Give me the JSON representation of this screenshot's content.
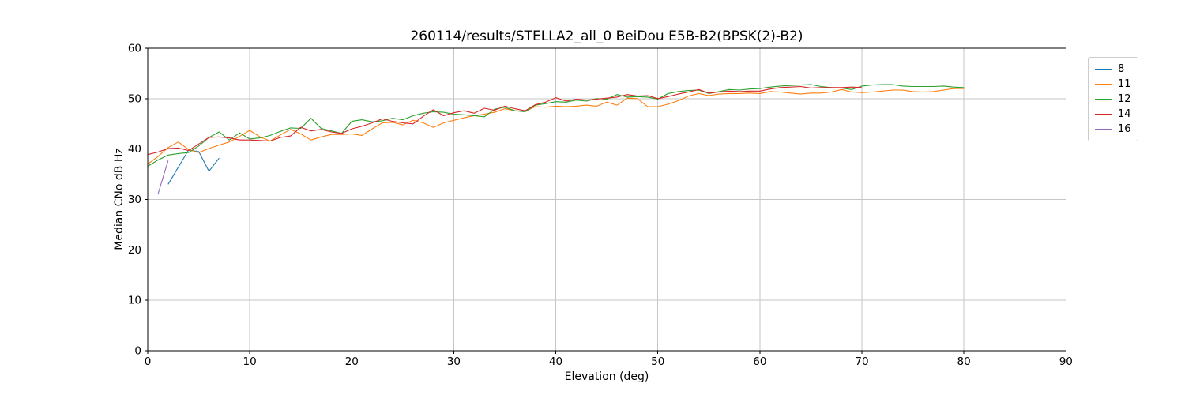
{
  "title": "260114/results/STELLA2_all_0 BeiDou E5B-B2(BPSK(2)-B2)",
  "chart_data": {
    "type": "line",
    "title": "260114/results/STELLA2_all_0 BeiDou E5B-B2(BPSK(2)-B2)",
    "xlabel": "Elevation (deg)",
    "ylabel": "Median CNo dB Hz",
    "xlim": [
      0,
      90
    ],
    "ylim": [
      0,
      60
    ],
    "xticks": [
      0,
      10,
      20,
      30,
      40,
      50,
      60,
      70,
      80,
      90
    ],
    "yticks": [
      0,
      10,
      20,
      30,
      40,
      50,
      60
    ],
    "grid": true,
    "grid_color": "#c6c6c6",
    "legend_position": "outside-right",
    "series": [
      {
        "name": "8",
        "color": "#1f77b4",
        "x": [
          2,
          4,
          5,
          6,
          7
        ],
        "values": [
          33.0,
          39.8,
          39.5,
          35.6,
          38.2
        ]
      },
      {
        "name": "11",
        "color": "#ff7f0e",
        "x": [
          0,
          1,
          2,
          3,
          4,
          5,
          6,
          7,
          8,
          9,
          10,
          11,
          12,
          13,
          14,
          15,
          16,
          17,
          18,
          19,
          20,
          21,
          22,
          23,
          24,
          25,
          26,
          27,
          28,
          29,
          30,
          31,
          32,
          33,
          34,
          35,
          36,
          37,
          38,
          39,
          40,
          41,
          42,
          43,
          44,
          45,
          46,
          47,
          48,
          49,
          50,
          51,
          52,
          53,
          54,
          55,
          56,
          57,
          58,
          59,
          60,
          61,
          62,
          63,
          64,
          65,
          66,
          67,
          68,
          69,
          70,
          71,
          72,
          73,
          74,
          75,
          76,
          77,
          78,
          79,
          80
        ],
        "values": [
          37.0,
          38.5,
          40.3,
          41.4,
          39.9,
          39.3,
          40.1,
          40.8,
          41.4,
          42.5,
          43.7,
          42.4,
          41.6,
          42.8,
          43.9,
          43.0,
          41.8,
          42.4,
          42.9,
          42.9,
          43.0,
          42.7,
          44.0,
          45.2,
          45.3,
          44.8,
          45.7,
          45.2,
          44.3,
          45.2,
          45.7,
          46.2,
          46.6,
          46.9,
          47.3,
          48.0,
          47.6,
          47.5,
          48.4,
          48.3,
          48.5,
          48.4,
          48.5,
          48.7,
          48.5,
          49.3,
          48.7,
          50.1,
          50.0,
          48.4,
          48.4,
          48.9,
          49.6,
          50.5,
          51.0,
          50.6,
          50.9,
          51.0,
          51.0,
          51.1,
          51.0,
          51.4,
          51.3,
          51.1,
          50.9,
          51.1,
          51.1,
          51.3,
          51.8,
          51.3,
          51.2,
          51.3,
          51.5,
          51.7,
          51.7,
          51.4,
          51.3,
          51.4,
          51.7,
          52.0,
          52.0
        ]
      },
      {
        "name": "12",
        "color": "#2ca02c",
        "x": [
          0,
          1,
          2,
          3,
          4,
          5,
          6,
          7,
          8,
          9,
          10,
          11,
          12,
          13,
          14,
          15,
          16,
          17,
          18,
          19,
          20,
          21,
          22,
          23,
          24,
          25,
          26,
          27,
          28,
          29,
          30,
          31,
          32,
          33,
          34,
          35,
          36,
          37,
          38,
          39,
          40,
          41,
          42,
          43,
          44,
          45,
          46,
          47,
          48,
          49,
          50,
          51,
          52,
          53,
          54,
          55,
          56,
          57,
          58,
          59,
          60,
          61,
          62,
          63,
          64,
          65,
          66,
          67,
          68,
          69,
          70,
          71,
          72,
          73,
          74,
          75,
          76,
          77,
          78,
          79,
          80
        ],
        "values": [
          36.6,
          37.8,
          38.8,
          39.1,
          39.3,
          40.6,
          42.3,
          43.4,
          41.8,
          43.2,
          42.0,
          42.2,
          42.7,
          43.5,
          44.2,
          44.1,
          46.1,
          44.1,
          43.6,
          43.1,
          45.5,
          45.8,
          45.4,
          45.6,
          46.1,
          45.8,
          46.6,
          47.1,
          47.4,
          47.3,
          46.9,
          46.8,
          46.6,
          46.4,
          47.9,
          48.3,
          47.6,
          47.4,
          48.7,
          49.0,
          49.4,
          49.3,
          49.7,
          49.5,
          50.0,
          49.9,
          50.8,
          50.3,
          50.4,
          50.3,
          49.9,
          51.0,
          51.4,
          51.6,
          51.7,
          51.0,
          51.4,
          51.8,
          51.7,
          51.9,
          52.0,
          52.3,
          52.5,
          52.6,
          52.7,
          52.8,
          52.4,
          52.2,
          52.1,
          51.8,
          52.5,
          52.7,
          52.8,
          52.8,
          52.5,
          52.4,
          52.4,
          52.4,
          52.5,
          52.3,
          52.2
        ]
      },
      {
        "name": "14",
        "color": "#d62728",
        "x": [
          0,
          1,
          2,
          3,
          4,
          5,
          6,
          7,
          8,
          9,
          10,
          11,
          12,
          13,
          14,
          15,
          16,
          17,
          18,
          19,
          20,
          21,
          22,
          23,
          24,
          25,
          26,
          27,
          28,
          29,
          30,
          31,
          32,
          33,
          34,
          35,
          36,
          37,
          38,
          39,
          40,
          41,
          42,
          43,
          44,
          45,
          46,
          47,
          48,
          49,
          50,
          51,
          52,
          53,
          54,
          55,
          56,
          57,
          58,
          59,
          60,
          61,
          62,
          63,
          64,
          65,
          66,
          67,
          68,
          69,
          70
        ],
        "values": [
          38.9,
          39.4,
          40.1,
          40.2,
          39.7,
          41.0,
          42.3,
          42.4,
          42.2,
          41.8,
          41.8,
          41.7,
          41.6,
          42.3,
          42.6,
          44.3,
          43.6,
          43.9,
          43.4,
          43.1,
          44.0,
          44.5,
          45.2,
          46.0,
          45.5,
          45.2,
          45.0,
          46.5,
          47.8,
          46.6,
          47.2,
          47.6,
          47.1,
          48.1,
          47.7,
          48.5,
          48.0,
          47.6,
          48.8,
          49.3,
          50.2,
          49.5,
          49.9,
          49.7,
          49.9,
          50.1,
          50.3,
          50.8,
          50.5,
          50.6,
          50.0,
          50.4,
          50.9,
          51.3,
          51.8,
          51.1,
          51.3,
          51.5,
          51.4,
          51.5,
          51.5,
          51.9,
          52.2,
          52.3,
          52.4,
          52.1,
          52.2,
          52.2,
          52.2,
          52.3,
          52.2
        ]
      },
      {
        "name": "16",
        "color": "#9467bd",
        "x": [
          1,
          2
        ],
        "values": [
          31.0,
          37.7
        ]
      }
    ]
  }
}
